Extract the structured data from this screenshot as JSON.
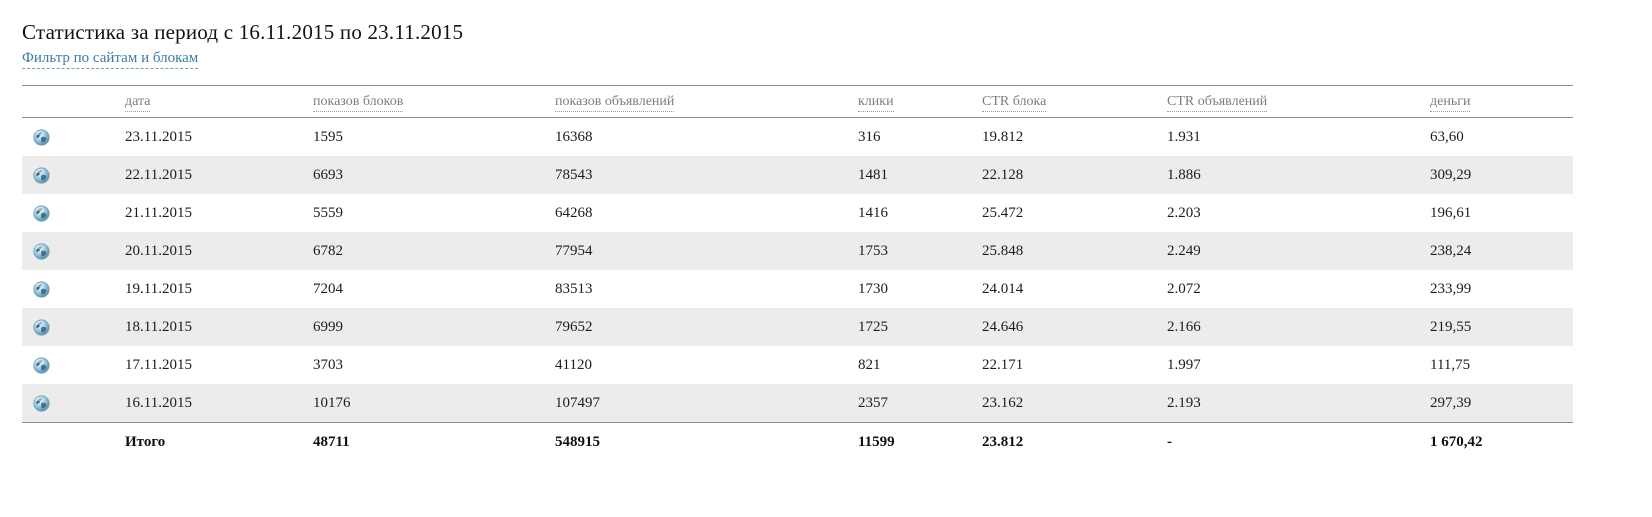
{
  "page": {
    "title": "Статистика за период с 16.11.2015 по 23.11.2015",
    "filter_link_label": "Фильтр по сайтам и блокам"
  },
  "colors": {
    "link": "#3c7ba2",
    "header_text": "#7d7d7d",
    "row_alt_background": "#ececec",
    "border": "#8f8f8f",
    "globe_ocean": "#a8d4e8",
    "globe_land": "#44607a"
  },
  "icons": {
    "row_icon": "globe-icon"
  },
  "table": {
    "columns": {
      "date": "дата",
      "block_shows": "показов блоков",
      "ad_shows": "показов объявлений",
      "clicks": "клики",
      "ctr_block": "CTR блока",
      "ctr_ads": "CTR объявлений",
      "money": "деньги"
    },
    "rows": [
      {
        "date": "23.11.2015",
        "block_shows": "1595",
        "ad_shows": "16368",
        "clicks": "316",
        "ctr_block": "19.812",
        "ctr_ads": "1.931",
        "money": "63,60"
      },
      {
        "date": "22.11.2015",
        "block_shows": "6693",
        "ad_shows": "78543",
        "clicks": "1481",
        "ctr_block": "22.128",
        "ctr_ads": "1.886",
        "money": "309,29"
      },
      {
        "date": "21.11.2015",
        "block_shows": "5559",
        "ad_shows": "64268",
        "clicks": "1416",
        "ctr_block": "25.472",
        "ctr_ads": "2.203",
        "money": "196,61"
      },
      {
        "date": "20.11.2015",
        "block_shows": "6782",
        "ad_shows": "77954",
        "clicks": "1753",
        "ctr_block": "25.848",
        "ctr_ads": "2.249",
        "money": "238,24"
      },
      {
        "date": "19.11.2015",
        "block_shows": "7204",
        "ad_shows": "83513",
        "clicks": "1730",
        "ctr_block": "24.014",
        "ctr_ads": "2.072",
        "money": "233,99"
      },
      {
        "date": "18.11.2015",
        "block_shows": "6999",
        "ad_shows": "79652",
        "clicks": "1725",
        "ctr_block": "24.646",
        "ctr_ads": "2.166",
        "money": "219,55"
      },
      {
        "date": "17.11.2015",
        "block_shows": "3703",
        "ad_shows": "41120",
        "clicks": "821",
        "ctr_block": "22.171",
        "ctr_ads": "1.997",
        "money": "111,75"
      },
      {
        "date": "16.11.2015",
        "block_shows": "10176",
        "ad_shows": "107497",
        "clicks": "2357",
        "ctr_block": "23.162",
        "ctr_ads": "2.193",
        "money": "297,39"
      }
    ],
    "total": {
      "label": "Итого",
      "block_shows": "48711",
      "ad_shows": "548915",
      "clicks": "11599",
      "ctr_block": "23.812",
      "ctr_ads": "-",
      "money": "1 670,42"
    }
  }
}
